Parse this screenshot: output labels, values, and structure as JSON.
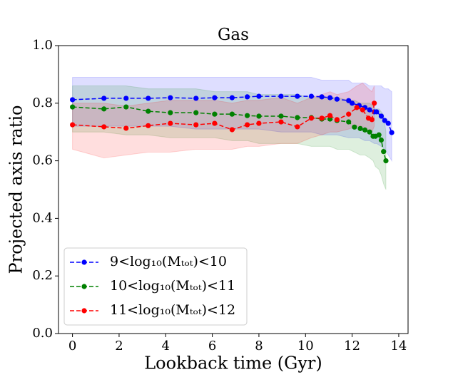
{
  "chart_data": {
    "type": "line",
    "title": "Gas",
    "xlabel": "Lookback time (Gyr)",
    "ylabel": "Projected axis ratio",
    "xlim": [
      -0.6,
      14.4
    ],
    "ylim": [
      0,
      1
    ],
    "xticks": [
      0,
      2,
      4,
      6,
      8,
      10,
      12,
      14
    ],
    "yticks": [
      {
        "value": 0,
        "label": "0.0"
      },
      0.2,
      0.4,
      0.6,
      0.8,
      {
        "value": 1,
        "label": "1.0"
      }
    ],
    "legend": "lower left",
    "linestyle": "dashed",
    "marker": "o",
    "series": [
      {
        "name": "9<log₁₀(Mₜₒₜ)<10",
        "color": "#0000ff",
        "x": [
          0,
          1.35,
          2.3,
          3.25,
          4.2,
          5.3,
          6.1,
          6.85,
          7.5,
          8.0,
          8.95,
          9.65,
          10.25,
          10.7,
          11.05,
          11.35,
          11.85,
          12.0,
          12.3,
          12.55,
          12.75,
          12.95,
          13.05,
          13.25,
          13.4,
          13.55,
          13.7
        ],
        "values": [
          0.812,
          0.817,
          0.817,
          0.817,
          0.819,
          0.817,
          0.819,
          0.819,
          0.822,
          0.824,
          0.824,
          0.824,
          0.824,
          0.822,
          0.819,
          0.814,
          0.809,
          0.8,
          0.792,
          0.785,
          0.777,
          0.77,
          0.77,
          0.755,
          0.74,
          0.73,
          0.698
        ],
        "lower": [
          0.72,
          0.72,
          0.72,
          0.72,
          0.72,
          0.71,
          0.71,
          0.71,
          0.71,
          0.71,
          0.7,
          0.7,
          0.7,
          0.69,
          0.69,
          0.69,
          0.68,
          0.68,
          0.68,
          0.67,
          0.67,
          0.66,
          0.66,
          0.65,
          0.64,
          0.62,
          0.6
        ],
        "upper": [
          0.89,
          0.89,
          0.89,
          0.89,
          0.89,
          0.89,
          0.89,
          0.89,
          0.89,
          0.89,
          0.89,
          0.89,
          0.89,
          0.88,
          0.88,
          0.88,
          0.88,
          0.87,
          0.87,
          0.87,
          0.86,
          0.86,
          0.86,
          0.86,
          0.85,
          0.85,
          0.84
        ]
      },
      {
        "name": "10<log₁₀(Mₜₒₜ)<11",
        "color": "#008000",
        "x": [
          0,
          1.35,
          2.3,
          3.25,
          4.2,
          5.3,
          6.1,
          6.85,
          7.5,
          8.0,
          8.95,
          9.65,
          10.25,
          10.7,
          11.05,
          11.35,
          11.85,
          12.1,
          12.35,
          12.55,
          12.75,
          12.9,
          13.0,
          13.15,
          13.25,
          13.35,
          13.45
        ],
        "values": [
          0.787,
          0.78,
          0.787,
          0.772,
          0.767,
          0.767,
          0.762,
          0.762,
          0.757,
          0.755,
          0.755,
          0.75,
          0.75,
          0.745,
          0.745,
          0.74,
          0.735,
          0.717,
          0.712,
          0.707,
          0.7,
          0.685,
          0.685,
          0.69,
          0.672,
          0.632,
          0.6
        ],
        "lower": [
          0.7,
          0.7,
          0.69,
          0.69,
          0.68,
          0.68,
          0.68,
          0.67,
          0.67,
          0.66,
          0.66,
          0.66,
          0.65,
          0.65,
          0.65,
          0.64,
          0.64,
          0.63,
          0.62,
          0.62,
          0.61,
          0.6,
          0.58,
          0.57,
          0.55,
          0.52,
          0.5
        ],
        "upper": [
          0.86,
          0.86,
          0.86,
          0.85,
          0.85,
          0.85,
          0.84,
          0.84,
          0.84,
          0.83,
          0.83,
          0.83,
          0.82,
          0.82,
          0.82,
          0.82,
          0.81,
          0.81,
          0.8,
          0.8,
          0.8,
          0.79,
          0.78,
          0.78,
          0.77,
          0.76,
          0.7
        ]
      },
      {
        "name": "11<log₁₀(Mₜₒₜ)<12",
        "color": "#ff0000",
        "x": [
          0,
          1.35,
          2.3,
          3.25,
          4.2,
          5.3,
          6.1,
          6.85,
          7.5,
          8.0,
          8.95,
          9.65,
          10.25,
          10.7,
          11.05,
          11.35,
          11.85,
          12.2,
          12.45,
          12.7,
          12.85,
          12.95
        ],
        "values": [
          0.725,
          0.718,
          0.713,
          0.722,
          0.73,
          0.725,
          0.73,
          0.708,
          0.725,
          0.73,
          0.735,
          0.718,
          0.748,
          0.748,
          0.757,
          0.743,
          0.762,
          0.785,
          0.777,
          0.748,
          0.743,
          0.8
        ],
        "lower": [
          0.64,
          0.61,
          0.62,
          0.63,
          0.63,
          0.64,
          0.64,
          0.64,
          0.65,
          0.65,
          0.66,
          0.66,
          0.68,
          0.69,
          0.7,
          0.7,
          0.71,
          0.72,
          0.72,
          0.7,
          0.7,
          0.72
        ],
        "upper": [
          0.8,
          0.8,
          0.79,
          0.8,
          0.81,
          0.81,
          0.81,
          0.8,
          0.81,
          0.81,
          0.82,
          0.8,
          0.82,
          0.83,
          0.84,
          0.83,
          0.84,
          0.86,
          0.87,
          0.85,
          0.84,
          0.86
        ]
      }
    ]
  }
}
